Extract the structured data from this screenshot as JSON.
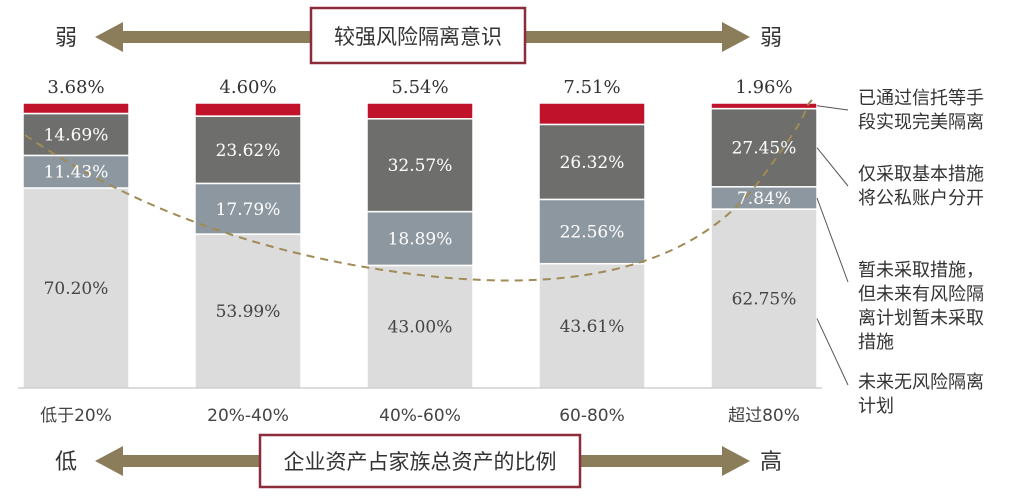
{
  "top_banner": {
    "text": "较强风险隔离意识",
    "left_word": "弱",
    "right_word": "弱"
  },
  "bottom_banner": {
    "text": "企业资产占家族总资产的比例",
    "left_word": "低",
    "right_word": "高"
  },
  "colors": {
    "arrow": "#8b7d5a",
    "banner_border": "#8b2c3a",
    "red": "#c0122a",
    "dark_gray": "#6e6e6c",
    "mid_gray": "#8d97a0",
    "light_gray": "#dcdcdc",
    "curve": "#a08a55",
    "axis": "#b8b8b8"
  },
  "chart_data": {
    "type": "bar",
    "stacked": true,
    "categories": [
      "低于20%",
      "20%-40%",
      "40%-60%",
      "60-80%",
      "超过80%"
    ],
    "series": [
      {
        "name": "未来无风险隔离计划",
        "values": [
          70.2,
          53.99,
          43.0,
          43.61,
          62.75
        ],
        "labels": [
          "70.20%",
          "53.99%",
          "43.00%",
          "43.61%",
          "62.75%"
        ]
      },
      {
        "name": "暂未采取措施，但未来有风险隔离计划暂未采取措施",
        "values": [
          11.43,
          17.79,
          18.89,
          22.56,
          7.84
        ],
        "labels": [
          "11.43%",
          "17.79%",
          "18.89%",
          "22.56%",
          "7.84%"
        ]
      },
      {
        "name": "仅采取基本措施将公私账户分开",
        "values": [
          14.69,
          23.62,
          32.57,
          26.32,
          27.45
        ],
        "labels": [
          "14.69%",
          "23.62%",
          "32.57%",
          "26.32%",
          "27.45%"
        ]
      },
      {
        "name": "已通过信托等手段实现完美隔离",
        "values": [
          3.68,
          4.6,
          5.54,
          7.51,
          1.96
        ],
        "labels": [
          "3.68%",
          "4.60%",
          "5.54%",
          "7.51%",
          "1.96%"
        ]
      }
    ],
    "legend": [
      [
        "已通过信托等手",
        "段实现完美隔离"
      ],
      [
        "仅采取基本措施",
        "将公私账户分开"
      ],
      [
        "暂未采取措施，",
        "但未来有风险隔",
        "离计划暂未采取",
        "措施"
      ],
      [
        "未来无风险隔离",
        "计划"
      ]
    ],
    "legend_position": "right",
    "ylim": [
      0,
      100
    ],
    "grid": false,
    "trend_curve": "dashed U-shaped curve"
  }
}
